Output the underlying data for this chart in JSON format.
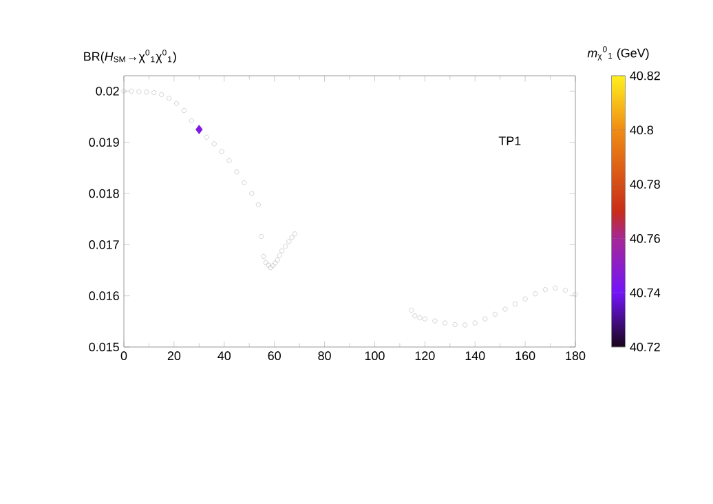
{
  "chart_data": {
    "type": "scatter",
    "ylabel": "BR(*H*$_{SM}$→χ$^{0}$$_{1}$χ$^{0}$$_{1}$)",
    "clabel": "*m*$_{χ}$$^{0}$$_{1}$ (GeV)",
    "annotations": [
      "TP1"
    ],
    "xlim": [
      0,
      180
    ],
    "ylim": [
      0.015,
      0.0203
    ],
    "xticks": [
      0,
      20,
      40,
      60,
      80,
      100,
      120,
      140,
      160,
      180
    ],
    "yticks": [
      0.015,
      0.016,
      0.017,
      0.018,
      0.019,
      0.02
    ],
    "clim": [
      40.72,
      40.82
    ],
    "cticks": [
      40.72,
      40.74,
      40.76,
      40.78,
      40.8,
      40.82
    ],
    "grid": false,
    "series": [
      {
        "color": "#b4b4b4",
        "marker": "circle",
        "x": [
          0,
          3,
          6,
          9,
          12,
          15,
          18,
          21,
          24,
          27,
          30,
          33,
          36,
          39,
          42,
          45,
          48,
          51,
          53.6,
          54.8,
          55.7,
          56.6,
          57.6,
          58.5,
          59.4,
          60.3,
          61.2,
          62.1,
          63,
          64.4,
          65.8,
          67,
          68.2,
          114.6,
          116,
          118,
          120,
          124,
          128,
          132,
          136,
          140,
          144,
          148,
          152,
          156,
          160,
          164,
          168,
          172,
          176,
          180
        ],
        "values": [
          0.02,
          0.02,
          0.01999,
          0.01998,
          0.01997,
          0.01993,
          0.01986,
          0.01976,
          0.01962,
          0.01942,
          null,
          0.0191,
          0.01897,
          0.01882,
          0.01864,
          0.01842,
          0.01821,
          0.018,
          0.01778,
          0.01716,
          0.01677,
          0.01665,
          0.0166,
          0.01655,
          0.01659,
          0.01664,
          0.0167,
          0.01679,
          0.01688,
          0.01697,
          0.01706,
          0.01714,
          0.01721,
          0.01572,
          0.01561,
          0.01557,
          0.01555,
          0.01551,
          0.01547,
          0.01544,
          0.01543,
          0.01547,
          0.01555,
          0.01564,
          0.01574,
          0.01584,
          0.01594,
          0.01604,
          0.01612,
          0.01615,
          0.01611,
          0.01603
        ]
      },
      {
        "marker": "diamond",
        "x": [
          30
        ],
        "values": [
          0.01925
        ],
        "cvalues": [
          40.745
        ]
      }
    ]
  }
}
